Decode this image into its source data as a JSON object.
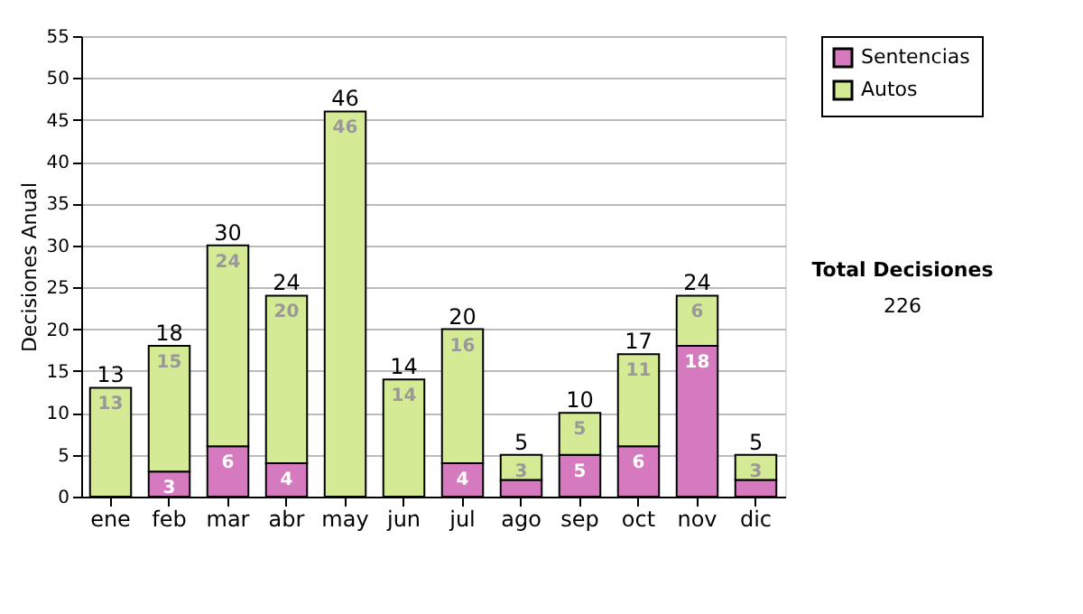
{
  "chart_data": {
    "type": "bar",
    "stacked": true,
    "ylabel": "Decisiones Anual",
    "categories": [
      "ene",
      "feb",
      "mar",
      "abr",
      "may",
      "jun",
      "jul",
      "ago",
      "sep",
      "oct",
      "nov",
      "dic"
    ],
    "series": [
      {
        "name": "Sentencias",
        "color": "#d67ac0",
        "values": [
          0,
          3,
          6,
          4,
          0,
          0,
          4,
          2,
          5,
          6,
          18,
          2
        ],
        "value_labels": [
          null,
          "3",
          "6",
          "4",
          null,
          null,
          "4",
          null,
          "5",
          "6",
          "18",
          null
        ]
      },
      {
        "name": "Autos",
        "color": "#d4ea94",
        "values": [
          13,
          15,
          24,
          20,
          46,
          14,
          16,
          3,
          5,
          11,
          6,
          3
        ],
        "value_labels": [
          "13",
          "15",
          "24",
          "20",
          "46",
          "14",
          "16",
          "3",
          "5",
          "11",
          "6",
          "3"
        ]
      }
    ],
    "totals": [
      "13",
      "18",
      "30",
      "24",
      "46",
      "14",
      "20",
      "5",
      "10",
      "17",
      "24",
      "5"
    ],
    "ylim": [
      0,
      55
    ],
    "yticks": [
      0,
      5,
      10,
      15,
      20,
      25,
      30,
      35,
      40,
      45,
      50,
      55
    ],
    "grid": "y",
    "legend": "top right",
    "annotations": [
      "Total Decisiones",
      "226"
    ]
  }
}
